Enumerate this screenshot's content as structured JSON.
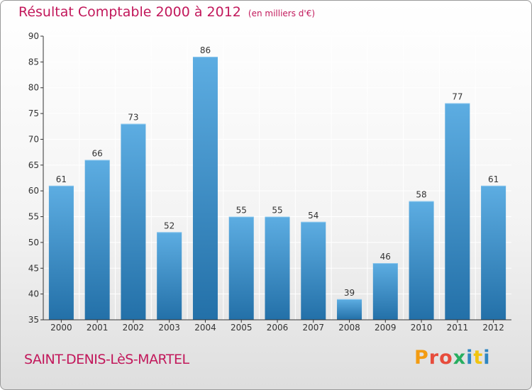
{
  "header": {
    "title": "Résultat Comptable 2000 à 2012",
    "subtitle": "(en milliers d'€)"
  },
  "footer": {
    "place_name": "SAINT-DENIS-LèS-MARTEL",
    "brand": "Proxiti"
  },
  "colors": {
    "title": "#c2185b",
    "bar_top": "#5dade2",
    "bar_bottom": "#2370a8",
    "axis": "#333333",
    "grid": "#ffffff"
  },
  "chart_data": {
    "type": "bar",
    "title": "Résultat Comptable 2000 à 2012",
    "subtitle": "(en milliers d'€)",
    "categories": [
      "2000",
      "2001",
      "2002",
      "2003",
      "2004",
      "2005",
      "2006",
      "2007",
      "2008",
      "2009",
      "2010",
      "2011",
      "2012"
    ],
    "values": [
      61,
      66,
      73,
      52,
      86,
      55,
      55,
      54,
      39,
      46,
      58,
      77,
      61
    ],
    "xlabel": "",
    "ylabel": "",
    "ylim": [
      35,
      90
    ],
    "yticks": [
      35,
      40,
      45,
      50,
      55,
      60,
      65,
      70,
      75,
      80,
      85,
      90
    ],
    "grid": true,
    "data_labels": true
  }
}
